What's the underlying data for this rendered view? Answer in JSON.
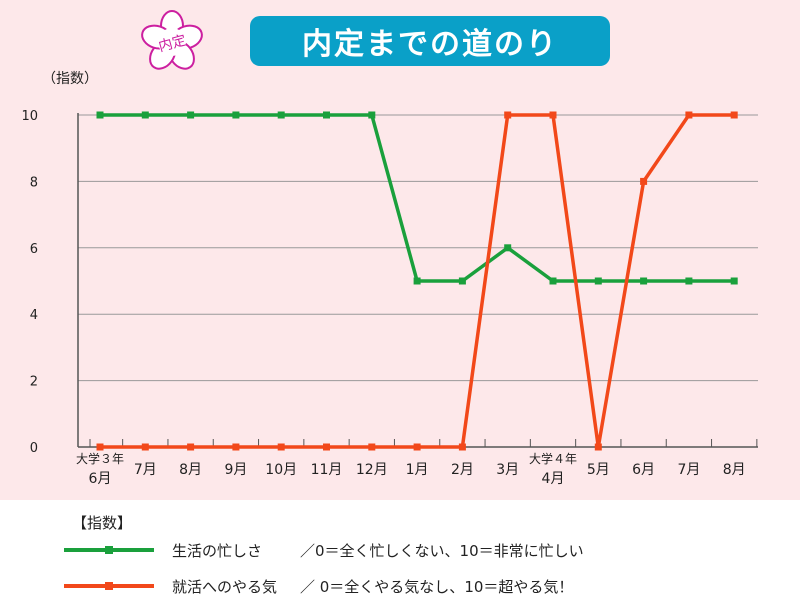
{
  "title": "内定までの道のり",
  "stamp_text": "内定",
  "unit_label": "（指数）",
  "colors": {
    "background": "#fde8ea",
    "title_bg": "#0aa0c8",
    "grid": "#999999",
    "series_busy": "#1aa03c",
    "series_job": "#f2481a",
    "stamp": "#cc1fa0"
  },
  "chart_data": {
    "type": "line",
    "x": [
      [
        "大学３年",
        "6月"
      ],
      [
        "7月"
      ],
      [
        "8月"
      ],
      [
        "9月"
      ],
      [
        "10月"
      ],
      [
        "11月"
      ],
      [
        "12月"
      ],
      [
        "1月"
      ],
      [
        "2月"
      ],
      [
        "3月"
      ],
      [
        "大学４年",
        "4月"
      ],
      [
        "5月"
      ],
      [
        "6月"
      ],
      [
        "7月"
      ],
      [
        "8月"
      ]
    ],
    "ylim": [
      0,
      10
    ],
    "yticks": [
      0,
      2,
      4,
      6,
      8,
      10
    ],
    "grid": true,
    "series": [
      {
        "name": "生活の忙しさ",
        "color": "#1aa03c",
        "values": [
          10,
          10,
          10,
          10,
          10,
          10,
          10,
          5,
          5,
          6,
          5,
          5,
          5,
          5,
          5
        ]
      },
      {
        "name": "就活へのやる気",
        "color": "#f2481a",
        "values": [
          0,
          0,
          0,
          0,
          0,
          0,
          0,
          0,
          0,
          10,
          10,
          0,
          8,
          10,
          10
        ]
      }
    ]
  },
  "legend": {
    "title": "【指数】",
    "items": [
      {
        "name": "生活の忙しさ",
        "desc": "／0＝全く忙しくない、10＝非常に忙しい"
      },
      {
        "name": "就活へのやる気",
        "desc": "／ 0＝全くやる気なし、10＝超やる気！"
      }
    ]
  }
}
